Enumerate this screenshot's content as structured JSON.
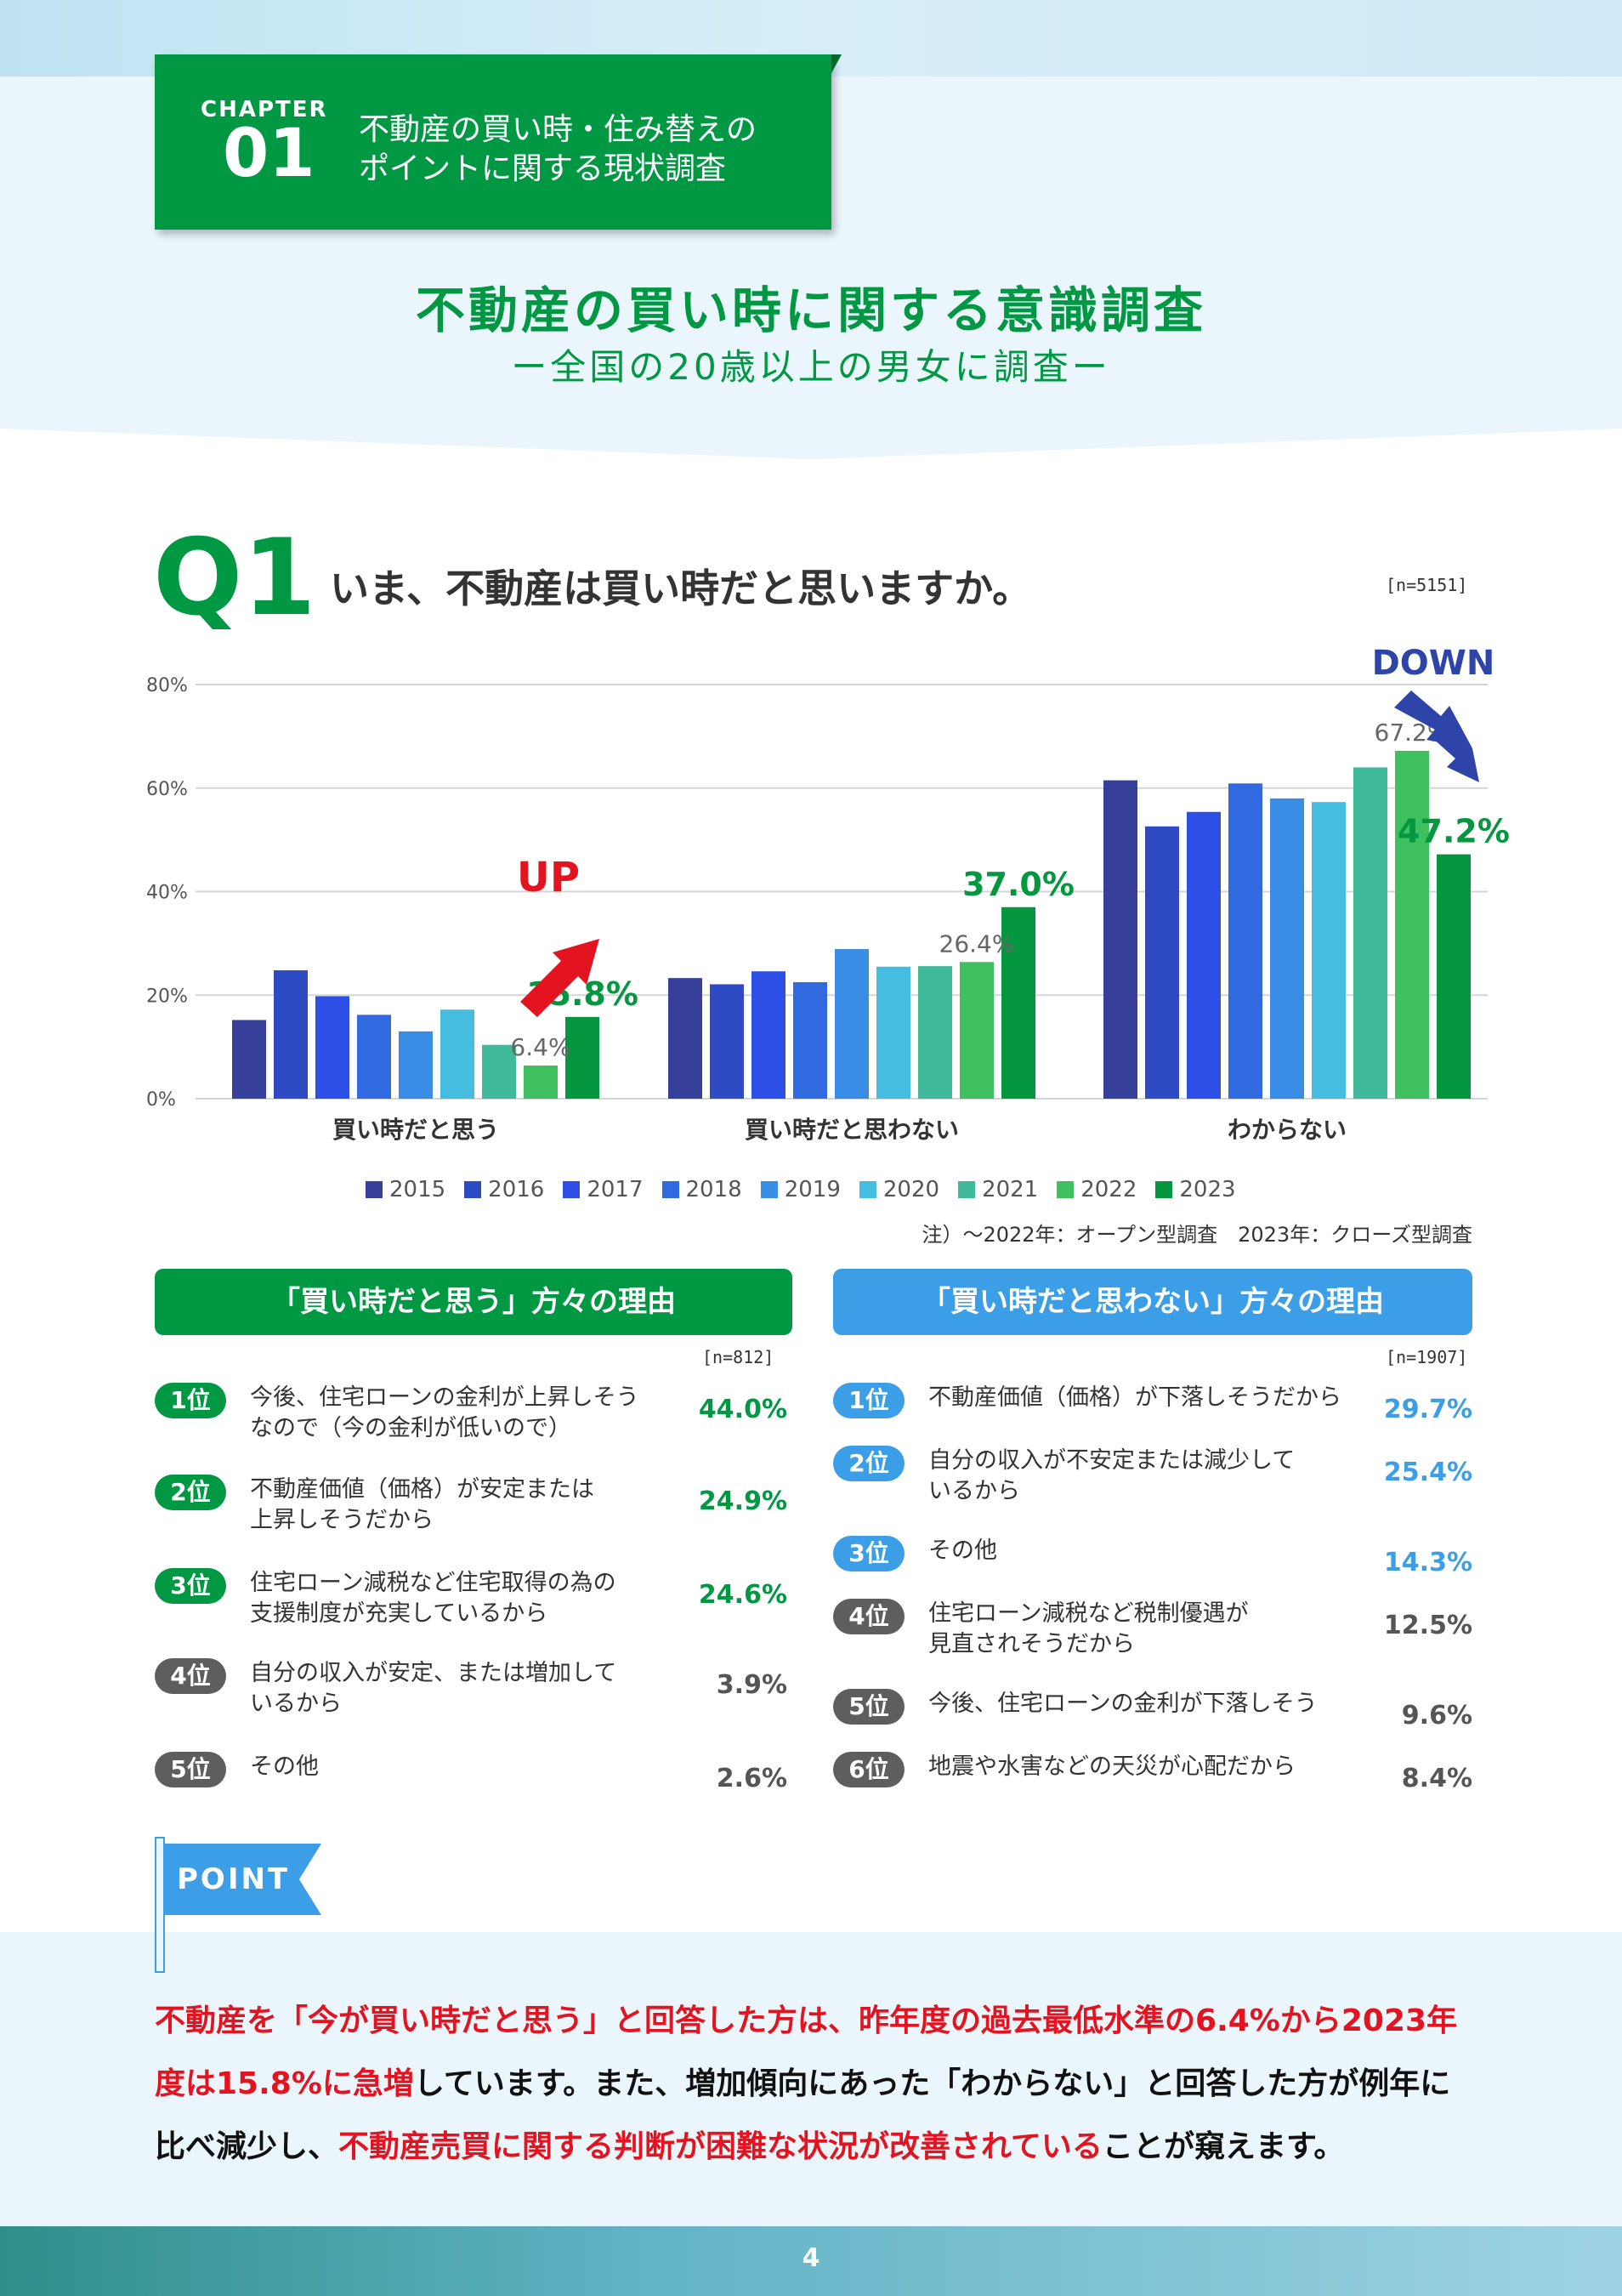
{
  "chapter": {
    "label": "CHAPTER",
    "number": "01",
    "title_line1": "不動産の買い時・住み替えの",
    "title_line2": "ポイントに関する現状調査"
  },
  "survey": {
    "title": "不動産の買い時に関する意識調査",
    "subtitle": "ー全国の20歳以上の男女に調査ー"
  },
  "question": {
    "label": "Q1",
    "text": "いま、不動産は買い時だと思いますか。",
    "n": "[n=5151]"
  },
  "chart_data": {
    "type": "bar",
    "categories": [
      "買い時だと思う",
      "買い時だと思わない",
      "わからない"
    ],
    "series": [
      {
        "name": "2015",
        "color": "#36409a",
        "values": [
          15.2,
          23.3,
          61.5
        ]
      },
      {
        "name": "2016",
        "color": "#2e4bc4",
        "values": [
          24.8,
          22.1,
          52.6
        ]
      },
      {
        "name": "2017",
        "color": "#2e4fe6",
        "values": [
          19.8,
          24.6,
          55.4
        ]
      },
      {
        "name": "2018",
        "color": "#3069e0",
        "values": [
          16.2,
          22.5,
          60.9
        ]
      },
      {
        "name": "2019",
        "color": "#3a8de4",
        "values": [
          13.0,
          28.9,
          58.0
        ]
      },
      {
        "name": "2020",
        "color": "#44bde0",
        "values": [
          17.2,
          25.5,
          57.3
        ]
      },
      {
        "name": "2021",
        "color": "#3fbb9c",
        "values": [
          10.4,
          25.6,
          64.0
        ]
      },
      {
        "name": "2022",
        "color": "#3fbf60",
        "values": [
          6.4,
          26.4,
          67.2
        ]
      },
      {
        "name": "2023",
        "color": "#059740",
        "values": [
          15.8,
          37.0,
          47.2
        ]
      }
    ],
    "ylim": [
      0,
      80
    ],
    "yticks": [
      "0%",
      "20%",
      "40%",
      "60%",
      "80%"
    ],
    "grid": true,
    "legend": "bottom",
    "annotations": [
      {
        "category": "買い時だと思う",
        "series": "2022",
        "label": "6.4%",
        "color": "#666666"
      },
      {
        "category": "買い時だと思う",
        "series": "2023",
        "label": "15.8%",
        "color": "#059740"
      },
      {
        "category": "買い時だと思わない",
        "series": "2022",
        "label": "26.4%",
        "color": "#666666"
      },
      {
        "category": "買い時だと思わない",
        "series": "2023",
        "label": "37.0%",
        "color": "#059740"
      },
      {
        "category": "わからない",
        "series": "2022",
        "label": "67.2%",
        "color": "#666666"
      },
      {
        "category": "わからない",
        "series": "2023",
        "label": "47.2%",
        "color": "#059740"
      }
    ],
    "up_label": "UP",
    "down_label": "DOWN",
    "note": "注）〜2022年：オープン型調査　2023年：クローズ型調査"
  },
  "reasons_yes": {
    "title": "「買い時だと思う」方々の理由",
    "n": "[n=812]",
    "accent": "#009843",
    "items": [
      {
        "rank": "1位",
        "text": "今後、住宅ローンの金利が上昇しそう\nなので（今の金利が低いので）",
        "pct": "44.0%",
        "highlight": true
      },
      {
        "rank": "2位",
        "text": "不動産価値（価格）が安定または\n上昇しそうだから",
        "pct": "24.9%",
        "highlight": true
      },
      {
        "rank": "3位",
        "text": "住宅ローン減税など住宅取得の為の\n支援制度が充実しているから",
        "pct": "24.6%",
        "highlight": true
      },
      {
        "rank": "4位",
        "text": "自分の収入が安定、または増加して\nいるから",
        "pct": "3.9%",
        "highlight": false
      },
      {
        "rank": "5位",
        "text": "その他",
        "pct": "2.6%",
        "highlight": false
      }
    ]
  },
  "reasons_no": {
    "title": "「買い時だと思わない」方々の理由",
    "n": "[n=1907]",
    "accent": "#3c9ee6",
    "items": [
      {
        "rank": "1位",
        "text": "不動産価値（価格）が下落しそうだから",
        "pct": "29.7%",
        "highlight": true
      },
      {
        "rank": "2位",
        "text": "自分の収入が不安定または減少して\nいるから",
        "pct": "25.4%",
        "highlight": true
      },
      {
        "rank": "3位",
        "text": "その他",
        "pct": "14.3%",
        "highlight": true
      },
      {
        "rank": "4位",
        "text": "住宅ローン減税など税制優遇が\n見直されそうだから",
        "pct": "12.5%",
        "highlight": false
      },
      {
        "rank": "5位",
        "text": "今後、住宅ローンの金利が下落しそう",
        "pct": "9.6%",
        "highlight": false
      },
      {
        "rank": "6位",
        "text": "地震や水害などの天災が心配だから",
        "pct": "8.4%",
        "highlight": false
      }
    ]
  },
  "point": {
    "label": "POINT",
    "seg1": "不動産を「今が買い時だと思う」と回答した方は、昨年度の過去最低水準の6.4%から2023年度は15.8%に急増",
    "seg2": "しています。また、増加傾向にあった「わからない」と回答した方が例年に比べ減少し、",
    "seg3": "不動産売買に関する判断が困難な状況が改善されている",
    "seg4": "ことが窺えます。"
  },
  "page_number": "4"
}
